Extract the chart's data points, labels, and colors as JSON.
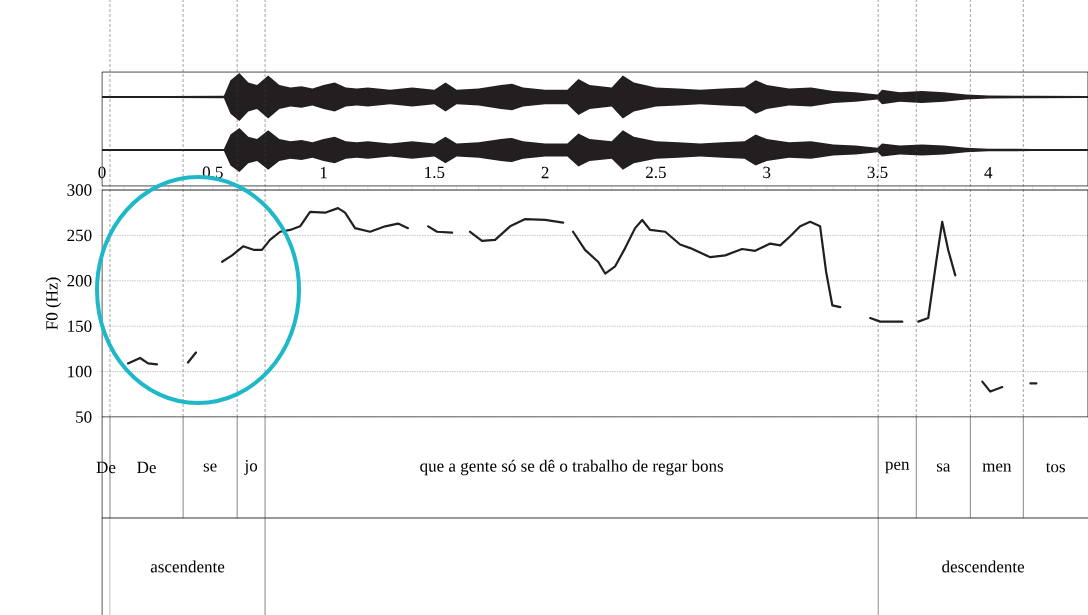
{
  "chart_data": {
    "type": "line",
    "ylabel": "F0 (Hz)",
    "xlim": [
      0,
      4.45
    ],
    "ylim": [
      50,
      300
    ],
    "yticks": [
      50,
      100,
      150,
      200,
      250,
      300
    ],
    "grid": "y",
    "marker": "none",
    "line_style": "solid",
    "xticks": [
      0,
      {
        "value": 0.1,
        "label": null
      },
      {
        "value": 0.2,
        "label": null
      },
      {
        "value": 0.3,
        "label": null
      },
      {
        "value": 0.4,
        "label": null
      },
      0.5,
      {
        "value": 0.6,
        "label": null
      },
      {
        "value": 0.7,
        "label": null
      },
      {
        "value": 0.8,
        "label": null
      },
      {
        "value": 0.9,
        "label": null
      },
      1,
      {
        "value": 1.1,
        "label": null
      },
      {
        "value": 1.2,
        "label": null
      },
      {
        "value": 1.3,
        "label": null
      },
      {
        "value": 1.4,
        "label": null
      },
      1.5,
      {
        "value": 1.6,
        "label": null
      },
      {
        "value": 1.7,
        "label": null
      },
      {
        "value": 1.8,
        "label": null
      },
      {
        "value": 1.9,
        "label": null
      },
      2,
      {
        "value": 2.1,
        "label": null
      },
      {
        "value": 2.2,
        "label": null
      },
      {
        "value": 2.3,
        "label": null
      },
      {
        "value": 2.4,
        "label": null
      },
      2.5,
      {
        "value": 2.6,
        "label": null
      },
      {
        "value": 2.7,
        "label": null
      },
      {
        "value": 2.8,
        "label": null
      },
      {
        "value": 2.9,
        "label": null
      },
      3,
      {
        "value": 3.1,
        "label": null
      },
      {
        "value": 3.2,
        "label": null
      },
      {
        "value": 3.3,
        "label": null
      },
      {
        "value": 3.4,
        "label": null
      },
      3.5,
      {
        "value": 3.6,
        "label": null
      },
      {
        "value": 3.7,
        "label": null
      },
      {
        "value": 3.8,
        "label": null
      },
      {
        "value": 3.9,
        "label": null
      },
      4,
      {
        "value": 4.1,
        "label": null
      },
      {
        "value": 4.2,
        "label": null
      },
      {
        "value": 4.3,
        "label": null
      },
      {
        "value": 4.4,
        "label": null
      }
    ],
    "x": [
      0.117,
      0.172,
      0.208,
      0.248,
      0.27,
      0.388,
      0.424,
      0.48,
      0.542,
      0.587,
      0.637,
      0.687,
      0.722,
      0.758,
      0.804,
      0.849,
      0.894,
      0.939,
      1.007,
      1.065,
      1.097,
      1.142,
      1.21,
      1.278,
      1.336,
      1.381,
      1.43,
      1.472,
      1.512,
      1.58,
      1.62,
      1.661,
      1.715,
      1.774,
      1.842,
      1.91,
      2.0,
      2.081,
      2.1,
      2.126,
      2.18,
      2.239,
      2.271,
      2.316,
      2.361,
      2.406,
      2.438,
      2.474,
      2.542,
      2.609,
      2.655,
      2.745,
      2.813,
      2.889,
      2.948,
      3.016,
      3.061,
      3.106,
      3.151,
      3.196,
      3.241,
      3.268,
      3.296,
      3.332,
      3.4,
      3.467,
      3.512,
      3.612,
      3.65,
      3.684,
      3.729,
      3.765,
      3.792,
      3.819,
      3.851,
      3.9,
      3.973,
      4.009,
      4.063,
      4.12,
      4.19,
      4.217
    ],
    "series": [
      {
        "color": "#231f20",
        "values": [
          109,
          115,
          109,
          108,
          null,
          110,
          121,
          null,
          221,
          228,
          238,
          234,
          234,
          245,
          254,
          256,
          260,
          276,
          275,
          280,
          275,
          258,
          254,
          260,
          263,
          258,
          null,
          260,
          254,
          253,
          null,
          254,
          244,
          245,
          260,
          268,
          267,
          264,
          null,
          254,
          234,
          221,
          208,
          216,
          236,
          258,
          267,
          256,
          254,
          240,
          236,
          226,
          228,
          235,
          233,
          241,
          239,
          249,
          260,
          265,
          260,
          210,
          173,
          171,
          null,
          159,
          155,
          155,
          null,
          155,
          159,
          221,
          265,
          234,
          206,
          null,
          89,
          78,
          83,
          null,
          87,
          87
        ]
      }
    ],
    "ref_lines": [
      {
        "axis": "x",
        "value": 0.036,
        "line_style": "dashed"
      },
      {
        "axis": "x",
        "value": 0.366,
        "line_style": "dashed"
      },
      {
        "axis": "x",
        "value": 0.61,
        "line_style": "dashed"
      },
      {
        "axis": "x",
        "value": 0.736,
        "line_style": "dashed"
      },
      {
        "axis": "x",
        "value": 3.503,
        "line_style": "dashed"
      },
      {
        "axis": "x",
        "value": 3.675,
        "line_style": "dashed"
      },
      {
        "axis": "x",
        "value": 3.919,
        "line_style": "dashed"
      },
      {
        "axis": "x",
        "value": 4.158,
        "line_style": "dashed"
      }
    ],
    "annotations": [
      "De",
      "De",
      "se",
      "jo",
      "que a gente só se dê o trabalho de regar bons",
      "pen",
      "sa",
      "men",
      "tos",
      "ascendente",
      "descendente"
    ]
  }
}
